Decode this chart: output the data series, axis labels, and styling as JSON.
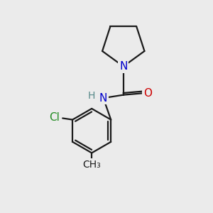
{
  "bg_color": "#ebebeb",
  "bond_color": "#1a1a1a",
  "bond_width": 1.6,
  "atom_colors": {
    "N": "#0000cc",
    "O": "#cc0000",
    "Cl": "#228B22",
    "H": "#558888",
    "C": "#1a1a1a"
  },
  "font_size_atom": 11,
  "font_size_small": 10,
  "font_size_h": 10
}
